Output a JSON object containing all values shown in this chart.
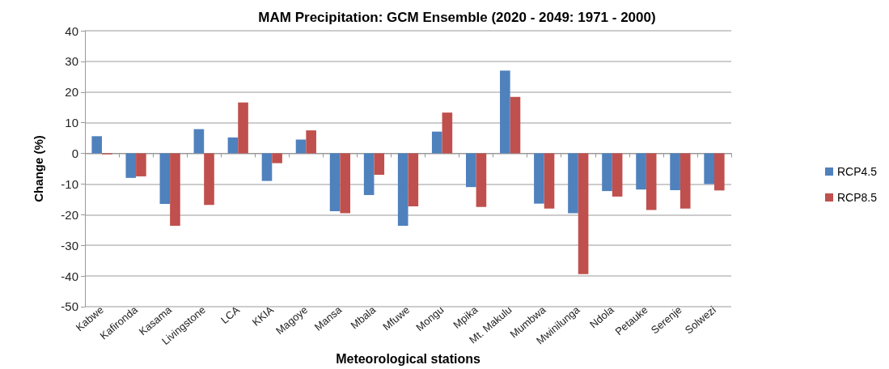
{
  "chart_data": {
    "type": "bar",
    "title": "MAM Precipitation: GCM Ensemble (2020 - 2049: 1971 - 2000)",
    "xlabel": "Meteorological stations",
    "ylabel": "Change (%)",
    "categories": [
      "Kabwe",
      "Kafironda",
      "Kasama",
      "Livingstone",
      "LCA",
      "KKIA",
      "Magoye",
      "Mansa",
      "Mbala",
      "Mfuwe",
      "Mongu",
      "Mpika",
      "Mt. Makulu",
      "Mumbwa",
      "Mwinilunga",
      "Ndola",
      "Petauke",
      "Serenje",
      "Solwezi"
    ],
    "series": [
      {
        "name": "RCP4.5",
        "color": "#4f81bd",
        "values": [
          5.6,
          -8,
          -16.5,
          7.9,
          5.2,
          -9,
          4.5,
          -18.9,
          -13.6,
          -23.6,
          7.1,
          -11,
          27,
          -16.4,
          -19.5,
          -12.3,
          -11.8,
          -12,
          -10
        ]
      },
      {
        "name": "RCP8.5",
        "color": "#c0504d",
        "values": [
          -0.3,
          -7.5,
          -23.6,
          -16.8,
          16.6,
          -3.2,
          7.5,
          -19.5,
          -7,
          -17.3,
          13.3,
          -17.5,
          18.4,
          -18,
          -39.4,
          -14.1,
          -18.5,
          -18,
          -12.1
        ]
      }
    ],
    "ylim": [
      -50,
      40
    ],
    "yticks": [
      -50,
      -40,
      -30,
      -20,
      -10,
      0,
      10,
      20,
      30,
      40
    ],
    "grid": "y",
    "legend": "right"
  }
}
